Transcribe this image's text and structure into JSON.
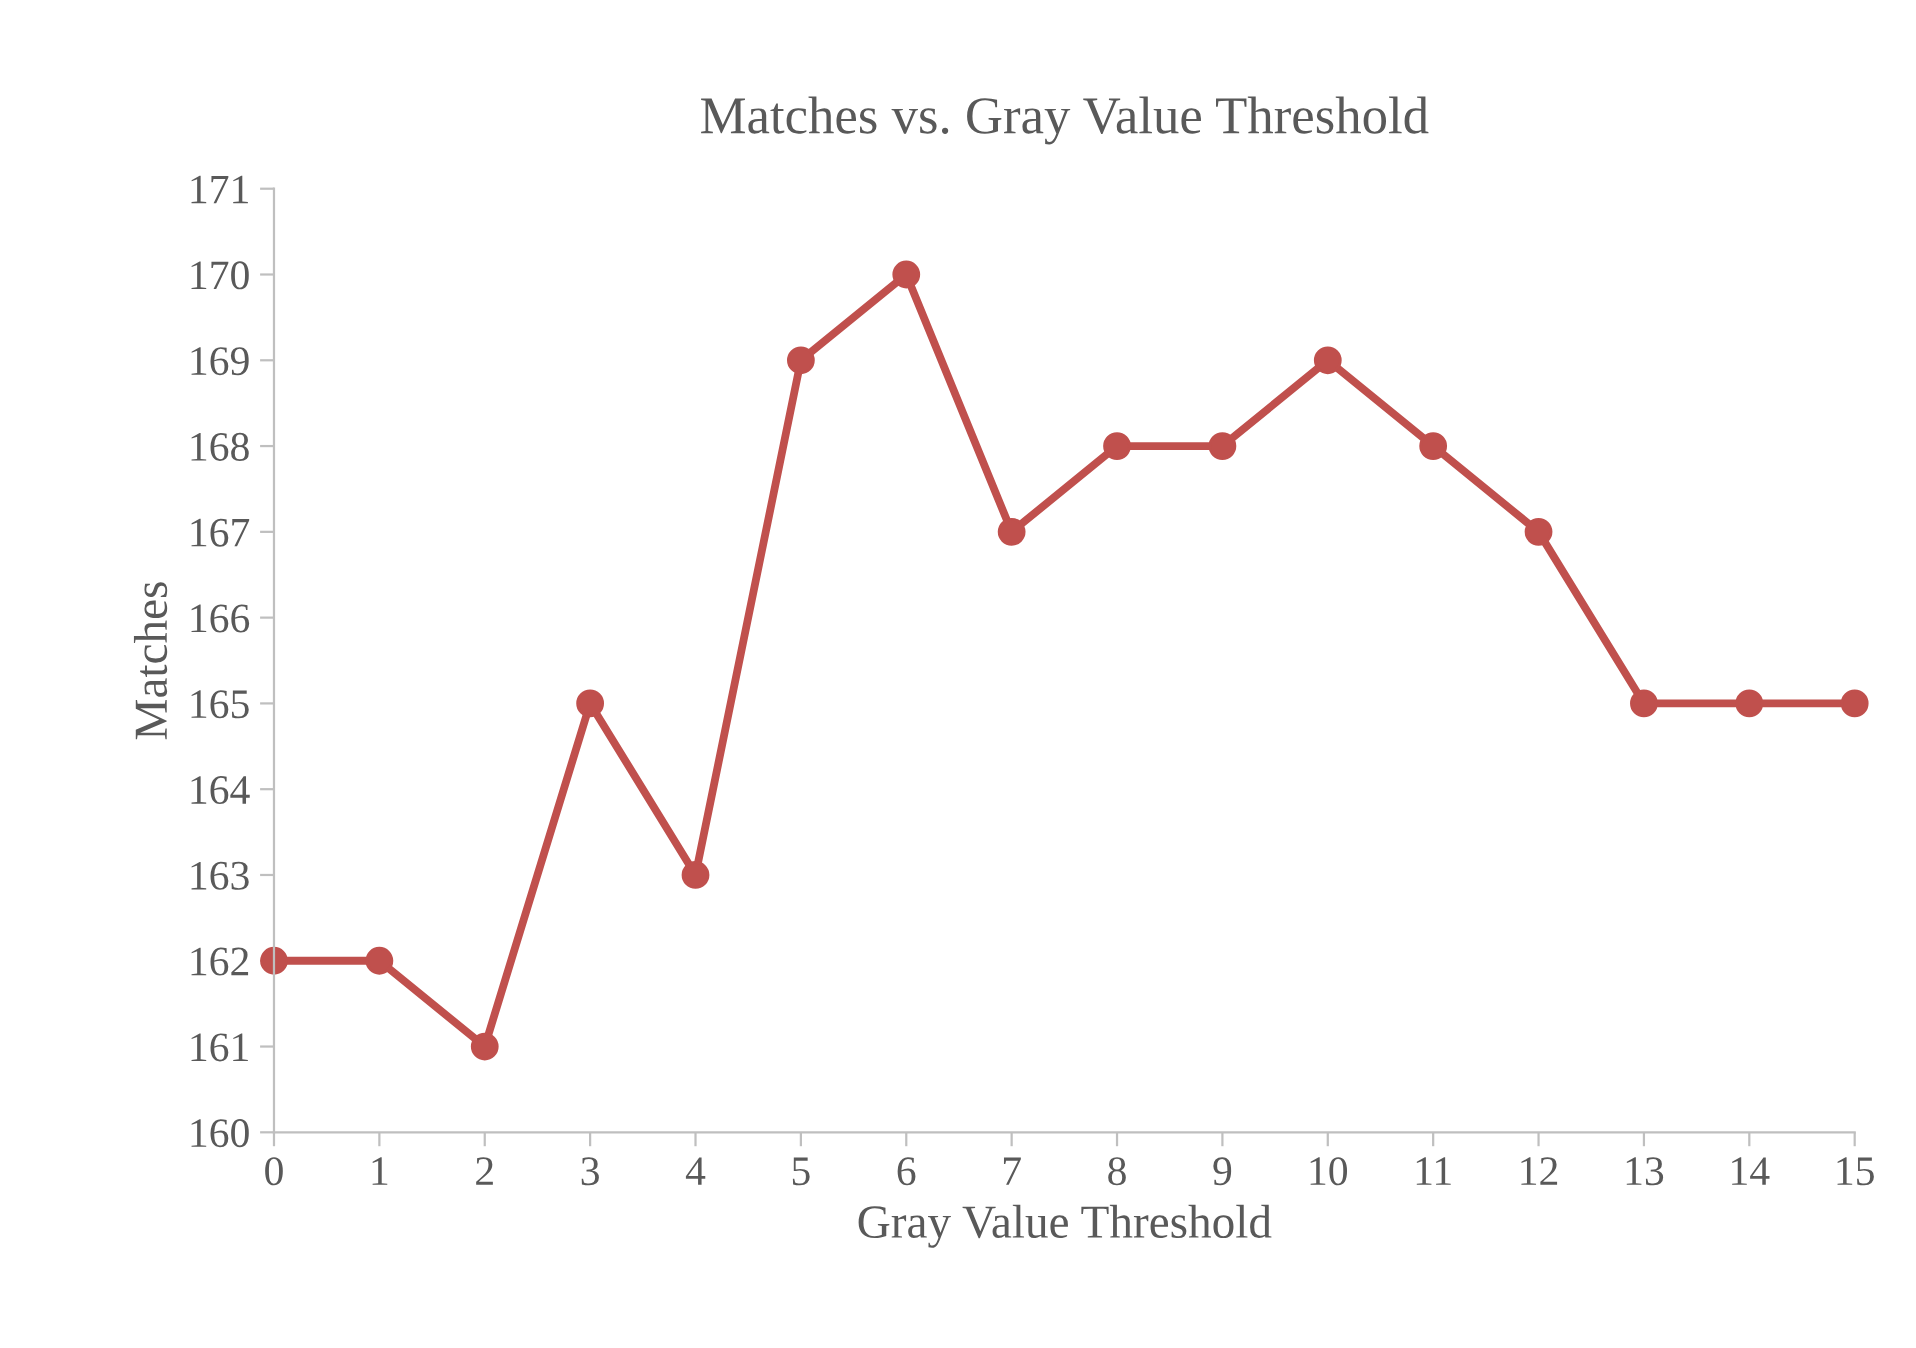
{
  "chart_data": {
    "type": "line",
    "title": "Matches vs. Gray Value Threshold",
    "xlabel": "Gray Value Threshold",
    "ylabel": "Matches",
    "x": [
      0,
      1,
      2,
      3,
      4,
      5,
      6,
      7,
      8,
      9,
      10,
      11,
      12,
      13,
      14,
      15
    ],
    "series": [
      {
        "color": "#c0504d",
        "values": [
          162,
          162,
          161,
          165,
          163,
          169,
          170,
          167,
          168,
          168,
          169,
          168,
          167,
          165,
          165,
          165
        ]
      }
    ],
    "xlim": [
      0,
      15
    ],
    "xticks": [
      0,
      1,
      2,
      3,
      4,
      5,
      6,
      7,
      8,
      9,
      10,
      11,
      12,
      13,
      14,
      15
    ],
    "ylim": [
      160,
      171
    ],
    "yticks": [
      160,
      161,
      162,
      163,
      164,
      165,
      166,
      167,
      168,
      169,
      170,
      171
    ],
    "grid": false,
    "marker": "circle",
    "line_style": "solid"
  }
}
